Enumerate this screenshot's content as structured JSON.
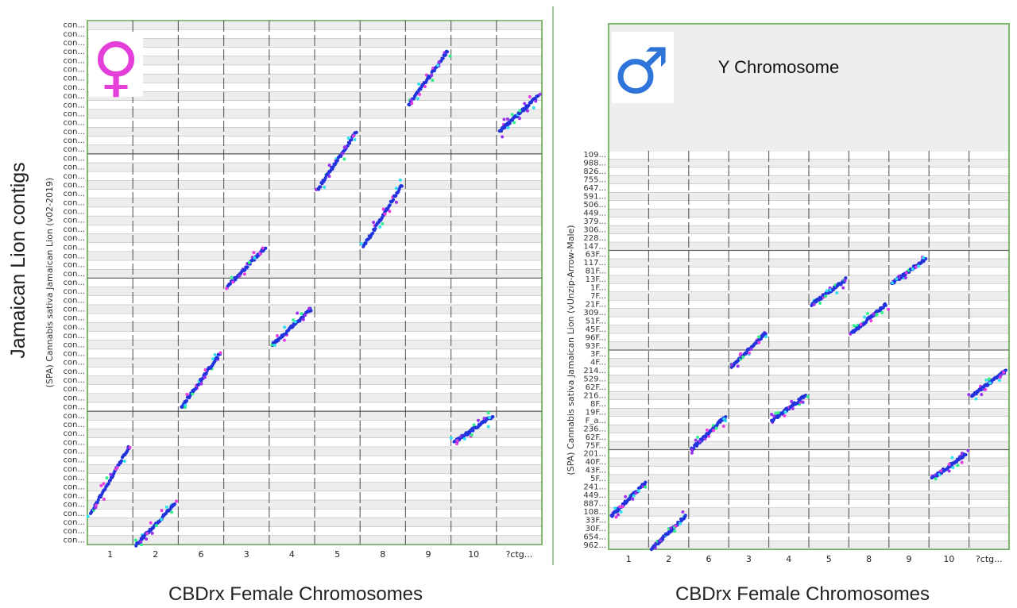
{
  "figure": {
    "left_panel_caption": "CBDrx Female Chromosomes",
    "right_panel_caption": "CBDrx Female Chromosomes",
    "outer_y_title": "Jamaican Lion contigs",
    "left_symbol_glyph": "♀",
    "right_symbol_glyph": "♂",
    "left_symbol_icon": "female-symbol-icon",
    "right_symbol_icon": "male-symbol-icon",
    "right_annotation": "Y Chromosome",
    "colors": {
      "frame": "#7dbb6e",
      "divider": "#7dbb6e",
      "female_symbol": "#e43fd9",
      "male_symbol": "#2f74d8",
      "dot_primary": "#2233dd",
      "dot_secondary": [
        "#9a33ee",
        "#e83fe0",
        "#33e0ee",
        "#33f088"
      ],
      "grid_line": "#444444",
      "band": "#d8d8d8"
    }
  },
  "chart_data": [
    {
      "type": "scatter",
      "title": "",
      "xlabel": "CBDrx Female Chromosomes",
      "ylabel": "(SPA) Cannabis sativa Jamaican Lion (v02-2019)",
      "x_categories": [
        "1",
        "2",
        "6",
        "3",
        "4",
        "5",
        "8",
        "9",
        "10",
        "?ctg..."
      ],
      "y_tick_labels": [
        "con...",
        "con...",
        "con...",
        "con...",
        "con...",
        "con...",
        "con...",
        "con...",
        "con...",
        "con...",
        "con...",
        "con...",
        "con...",
        "con...",
        "con...",
        "con...",
        "con...",
        "con...",
        "con...",
        "con...",
        "con...",
        "con...",
        "con...",
        "con...",
        "con...",
        "con...",
        "con...",
        "con...",
        "con...",
        "con...",
        "con...",
        "con...",
        "con...",
        "con...",
        "con...",
        "con...",
        "con...",
        "con...",
        "con...",
        "con...",
        "con...",
        "con...",
        "con...",
        "con...",
        "con...",
        "con...",
        "con...",
        "con...",
        "con...",
        "con...",
        "con...",
        "con...",
        "con...",
        "con...",
        "con...",
        "con...",
        "con...",
        "con...",
        "con..."
      ],
      "xlim": [
        0,
        10
      ],
      "ylim": [
        0,
        59
      ],
      "diagonals": [
        {
          "x_category": "1",
          "x": [
            0.0,
            1.0
          ],
          "y": [
            3.5,
            11.0
          ]
        },
        {
          "x_category": "2",
          "x": [
            1.0,
            2.0
          ],
          "y": [
            0.0,
            4.5
          ]
        },
        {
          "x_category": "6",
          "x": [
            2.0,
            3.0
          ],
          "y": [
            15.5,
            21.5
          ]
        },
        {
          "x_category": "3",
          "x": [
            3.0,
            4.0
          ],
          "y": [
            29.0,
            33.5
          ]
        },
        {
          "x_category": "4",
          "x": [
            4.0,
            5.0
          ],
          "y": [
            22.5,
            26.5
          ]
        },
        {
          "x_category": "5",
          "x": [
            5.0,
            6.0
          ],
          "y": [
            40.0,
            46.5
          ]
        },
        {
          "x_category": "8",
          "x": [
            6.0,
            7.0
          ],
          "y": [
            33.5,
            40.5
          ]
        },
        {
          "x_category": "9",
          "x": [
            7.0,
            8.0
          ],
          "y": [
            49.5,
            55.5
          ]
        },
        {
          "x_category": "10",
          "x": [
            8.0,
            9.0
          ],
          "y": [
            11.5,
            14.5
          ]
        },
        {
          "x_category": "10",
          "x": [
            9.0,
            10.0
          ],
          "y": [
            46.5,
            50.5
          ]
        }
      ],
      "grid": true
    },
    {
      "type": "scatter",
      "title": "",
      "xlabel": "CBDrx Female Chromosomes",
      "ylabel": "(SPA) Cannabis sativa Jamaican Lion (vUnzip-Arrow-Male)",
      "x_categories": [
        "1",
        "2",
        "6",
        "3",
        "4",
        "5",
        "8",
        "9",
        "10",
        "?ctg..."
      ],
      "y_tick_labels": [
        "962...",
        "654...",
        "30F...",
        "33F...",
        "108...",
        "887...",
        "449...",
        "241...",
        "5F...",
        "43F...",
        "40F...",
        "201...",
        "75F...",
        "62F...",
        "236...",
        "F_a...",
        "19F...",
        "8F...",
        "216...",
        "62F...",
        "529...",
        "214...",
        "4F...",
        "3F...",
        "93F...",
        "96F...",
        "45F...",
        "51F...",
        "309...",
        "21F...",
        "7F...",
        "1F...",
        "13F...",
        "81F...",
        "117...",
        "63F...",
        "147...",
        "228...",
        "306...",
        "379...",
        "449...",
        "506...",
        "591...",
        "647...",
        "755...",
        "826...",
        "988...",
        "109..."
      ],
      "xlim": [
        0,
        10
      ],
      "ylim": [
        0,
        48
      ],
      "diagonals": [
        {
          "x_category": "1",
          "x": [
            0.0,
            1.0
          ],
          "y": [
            4.0,
            8.0
          ]
        },
        {
          "x_category": "2",
          "x": [
            1.0,
            2.0
          ],
          "y": [
            0.0,
            4.0
          ]
        },
        {
          "x_category": "6",
          "x": [
            2.0,
            3.0
          ],
          "y": [
            12.0,
            16.0
          ]
        },
        {
          "x_category": "3",
          "x": [
            3.0,
            4.0
          ],
          "y": [
            22.0,
            26.0
          ]
        },
        {
          "x_category": "4",
          "x": [
            4.0,
            5.0
          ],
          "y": [
            15.5,
            18.5
          ]
        },
        {
          "x_category": "5",
          "x": [
            5.0,
            6.0
          ],
          "y": [
            29.5,
            32.5
          ]
        },
        {
          "x_category": "8",
          "x": [
            6.0,
            7.0
          ],
          "y": [
            26.0,
            29.5
          ]
        },
        {
          "x_category": "9",
          "x": [
            7.0,
            8.0
          ],
          "y": [
            32.0,
            35.0
          ]
        },
        {
          "x_category": "10",
          "x": [
            8.0,
            9.0
          ],
          "y": [
            8.5,
            11.5
          ]
        },
        {
          "x_category": "10",
          "x": [
            9.0,
            10.0
          ],
          "y": [
            18.5,
            21.5
          ]
        }
      ],
      "grid": true
    }
  ]
}
